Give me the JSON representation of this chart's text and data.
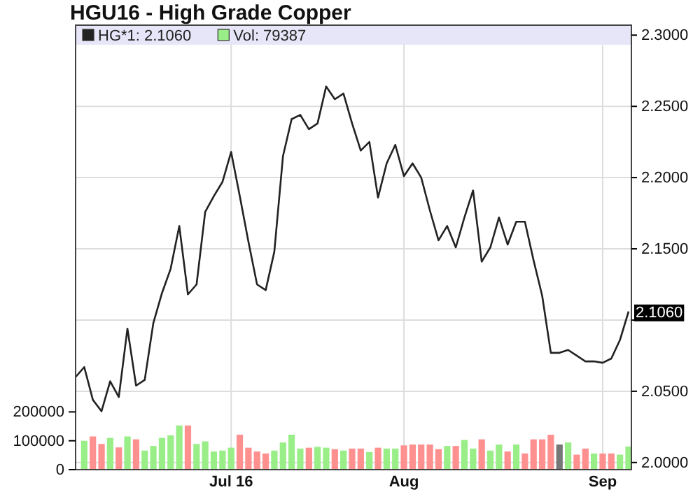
{
  "chart_data": {
    "type": "bar",
    "title": "HGU16 - High Grade Copper",
    "categories": [
      null,
      null,
      null,
      null,
      null,
      null,
      null,
      null,
      null,
      null,
      null,
      null,
      null,
      null,
      null,
      null,
      null,
      null,
      "Jul 16",
      null,
      null,
      null,
      null,
      null,
      null,
      null,
      null,
      null,
      null,
      null,
      null,
      null,
      null,
      null,
      null,
      null,
      null,
      null,
      "Aug",
      null,
      null,
      null,
      null,
      null,
      null,
      null,
      null,
      null,
      null,
      null,
      null,
      null,
      null,
      null,
      null,
      null,
      null,
      null,
      null,
      null,
      null,
      "Sep",
      null,
      null,
      null
    ],
    "series": [
      {
        "name": "Vol: 79387",
        "color": "#99ee88",
        "values": [
          null,
          100000,
          115000,
          89000,
          110000,
          77000,
          115000,
          105000,
          66000,
          82000,
          110000,
          119000,
          153000,
          153000,
          89000,
          98000,
          63000,
          66000,
          76000,
          121000,
          76000,
          63000,
          56000,
          66000,
          94000,
          121000,
          73000,
          76000,
          79000,
          76000,
          71000,
          66000,
          73000,
          73000,
          61000,
          76000,
          73000,
          73000,
          84000,
          87000,
          87000,
          87000,
          71000,
          82000,
          82000,
          103000,
          73000,
          105000,
          66000,
          87000,
          63000,
          87000,
          56000,
          105000,
          105000,
          121000,
          87000,
          94000,
          52000,
          73000,
          56000,
          56000,
          56000,
          52000,
          80000
        ],
        "colors": [
          "#99ee88",
          "#99ee88",
          "#ff9090",
          "#ff9090",
          "#99ee88",
          "#ff9090",
          "#99ee88",
          "#ff9090",
          "#99ee88",
          "#99ee88",
          "#99ee88",
          "#99ee88",
          "#99ee88",
          "#ff9090",
          "#99ee88",
          "#99ee88",
          "#99ee88",
          "#99ee88",
          "#99ee88",
          "#ff9090",
          "#ff9090",
          "#ff9090",
          "#ff9090",
          "#99ee88",
          "#99ee88",
          "#99ee88",
          "#99ee88",
          "#ff9090",
          "#99ee88",
          "#99ee88",
          "#ff9090",
          "#99ee88",
          "#ff9090",
          "#ff9090",
          "#99ee88",
          "#ff9090",
          "#99ee88",
          "#99ee88",
          "#ff9090",
          "#ff9090",
          "#ff9090",
          "#ff9090",
          "#ff9090",
          "#99ee88",
          "#ff9090",
          "#99ee88",
          "#99ee88",
          "#ff9090",
          "#99ee88",
          "#99ee88",
          "#ff9090",
          "#99ee88",
          "#ff9090",
          "#ff9090",
          "#ff9090",
          "#ff9090",
          "#777777",
          "#99ee88",
          "#ff9090",
          "#ff9090",
          "#99ee88",
          "#ff9090",
          "#ff9090",
          "#99ee88",
          "#99ee88"
        ]
      },
      {
        "name": "HG*1: 2.1060",
        "type": "line",
        "axis": "y2",
        "color": "#222222",
        "values": [
          2.06,
          2.067,
          2.044,
          2.036,
          2.057,
          2.046,
          2.094,
          2.054,
          2.058,
          2.098,
          2.119,
          2.136,
          2.166,
          2.118,
          2.125,
          2.176,
          2.187,
          2.197,
          2.218,
          2.187,
          2.155,
          2.125,
          2.121,
          2.148,
          2.215,
          2.241,
          2.244,
          2.234,
          2.238,
          2.264,
          2.255,
          2.259,
          2.238,
          2.219,
          2.225,
          2.186,
          2.21,
          2.223,
          2.201,
          2.21,
          2.2,
          2.177,
          2.156,
          2.166,
          2.151,
          2.172,
          2.191,
          2.141,
          2.151,
          2.172,
          2.153,
          2.169,
          2.169,
          2.142,
          2.117,
          2.077,
          2.077,
          2.079,
          2.075,
          2.071,
          2.071,
          2.07,
          2.073,
          2.086,
          2.106
        ]
      }
    ],
    "ylim": [
      0,
      1540000
    ],
    "yticks": [
      0,
      100000,
      200000
    ],
    "y2lim": [
      1.995,
      2.307
    ],
    "y2ticks": [
      {
        "value": 2.0,
        "label": "2.0000"
      },
      {
        "value": 2.05,
        "label": "2.0500"
      },
      {
        "value": 2.1,
        "label": null
      },
      {
        "value": 2.15,
        "label": "2.1500"
      },
      {
        "value": 2.2,
        "label": "2.2000"
      },
      {
        "value": 2.25,
        "label": "2.2500"
      },
      {
        "value": 2.3,
        "label": "2.3000"
      }
    ],
    "annotations": [
      "2.1060"
    ],
    "grid": true,
    "legend": "top left"
  }
}
